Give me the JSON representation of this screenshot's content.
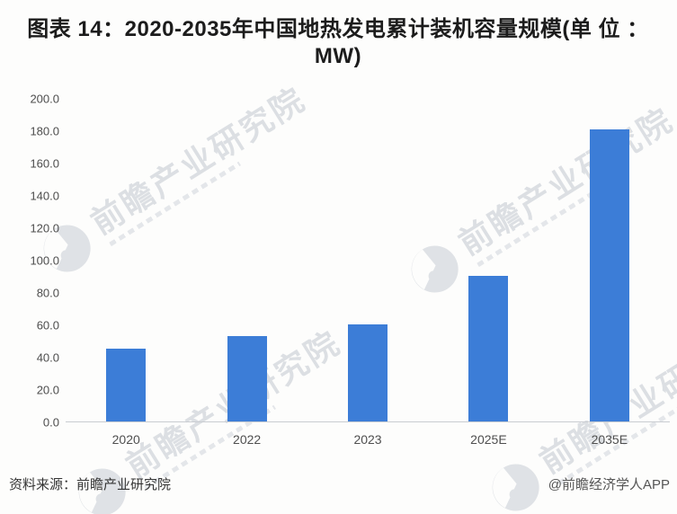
{
  "title": "图表 14：2020-2035年中国地热发电累计装机容量规模(单 位 ：MW)",
  "footer": {
    "source": "资料来源：前瞻产业研究院",
    "credit": "@前瞻经济学人APP"
  },
  "watermark": {
    "text": "前瞻产业研究院"
  },
  "colors": {
    "bar": "#3c7dd7",
    "watermark": "#bcc3cc",
    "axis_line": "#c9ccd1"
  },
  "chart_data": {
    "type": "bar",
    "title": "图表 14：2020-2035年中国地热发电累计装机容量规模(单 位 ：MW)",
    "categories": [
      "2020",
      "2022",
      "2023",
      "2025E",
      "2035E"
    ],
    "values": [
      45,
      53,
      60,
      90,
      181
    ],
    "xlabel": "",
    "ylabel": "",
    "ylim": [
      0,
      200
    ],
    "ytick_step": 20,
    "ytick_labels": [
      "0.0",
      "20.0",
      "40.0",
      "60.0",
      "80.0",
      "100.0",
      "120.0",
      "140.0",
      "160.0",
      "180.0",
      "200.0"
    ],
    "grid": false,
    "legend": false,
    "bar_color": "#3c7dd7"
  }
}
